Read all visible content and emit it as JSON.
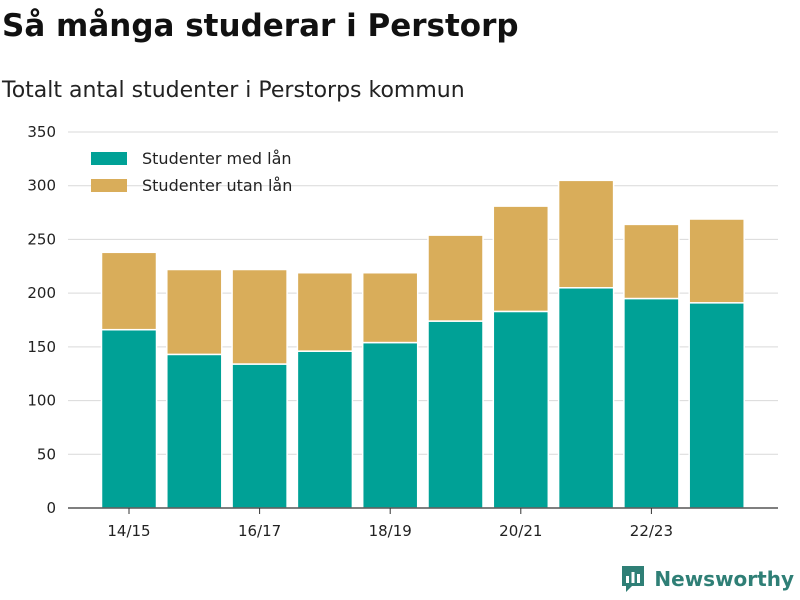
{
  "header": {
    "title": "Så många studerar i Perstorp",
    "subtitle": "Totalt antal studenter i Perstorps kommun"
  },
  "brand": {
    "name": "Newsworthy",
    "icon": "newsworthy-logo-icon",
    "color": "#2f7f76"
  },
  "chart_data": {
    "type": "bar",
    "stacked": true,
    "categories": [
      "14/15",
      "15/16",
      "16/17",
      "17/18",
      "18/19",
      "19/20",
      "20/21",
      "21/22",
      "22/23",
      "23/24"
    ],
    "tick_labels": [
      "14/15",
      "16/17",
      "18/19",
      "20/21",
      "22/23"
    ],
    "series": [
      {
        "name": "Studenter med lån",
        "color": "#00a196",
        "values": [
          166,
          143,
          134,
          146,
          154,
          174,
          183,
          205,
          195,
          191
        ]
      },
      {
        "name": "Studenter utan lån",
        "color": "#d9ad5a",
        "values": [
          72,
          79,
          88,
          73,
          65,
          80,
          98,
          100,
          69,
          78
        ]
      }
    ],
    "ylim": [
      0,
      350
    ],
    "yticks": [
      0,
      50,
      100,
      150,
      200,
      250,
      300,
      350
    ],
    "grid": true,
    "legend": "top-left"
  }
}
